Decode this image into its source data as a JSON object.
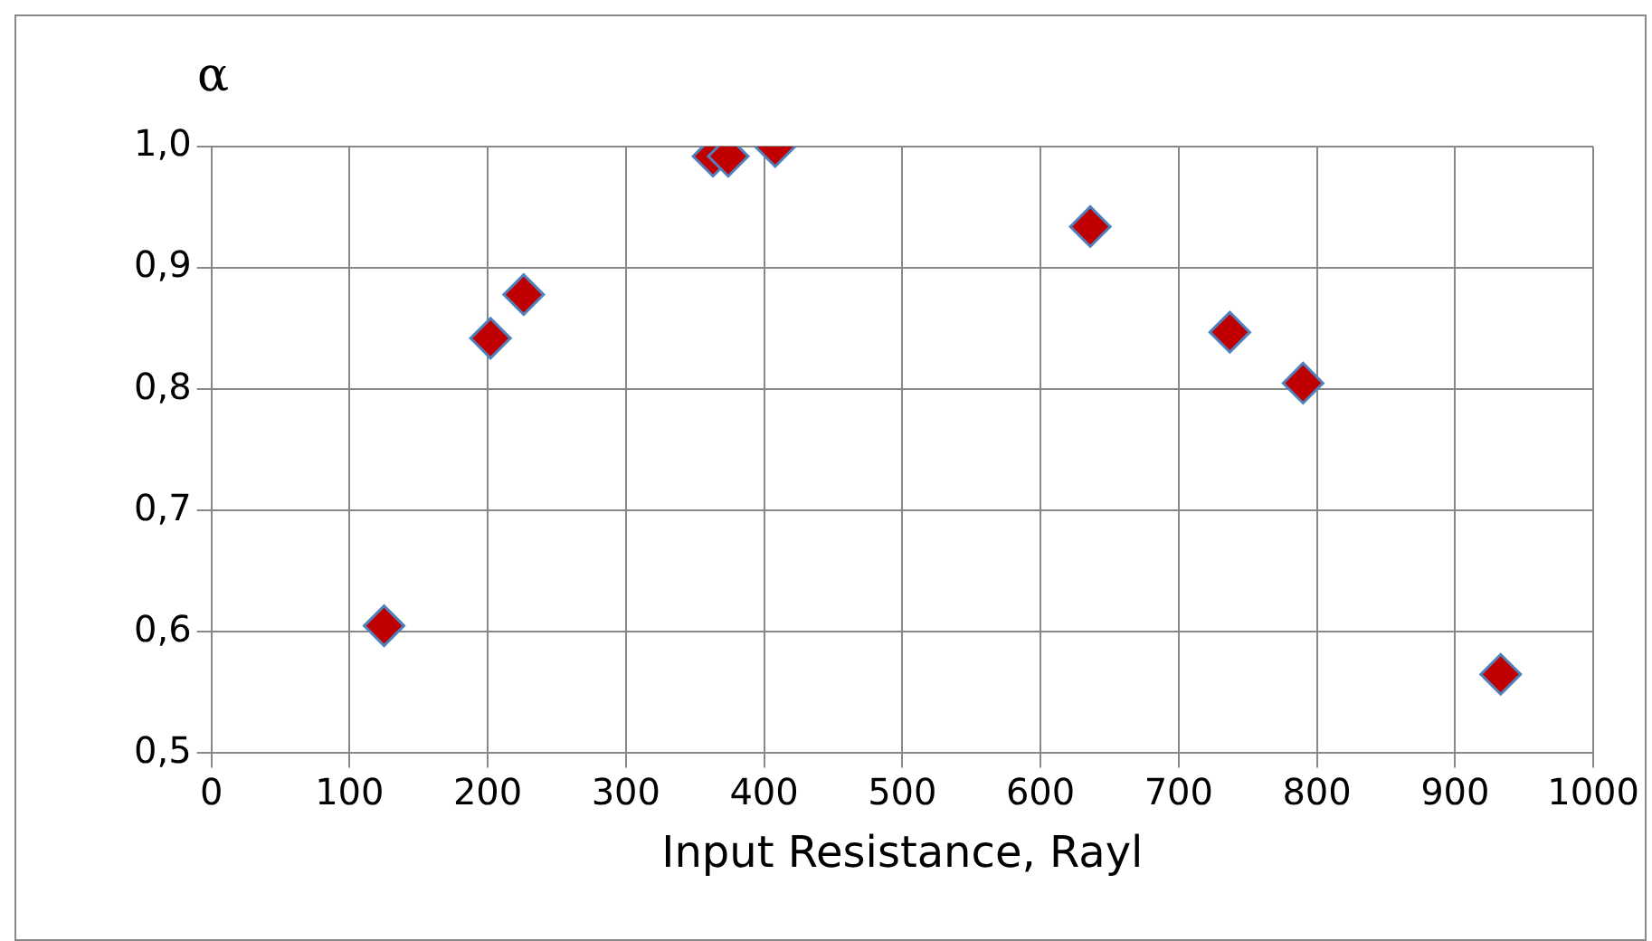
{
  "chart_data": {
    "type": "scatter",
    "ylabel": "α",
    "xlabel": "Input Resistance, Rayl",
    "x": [
      125,
      202,
      226,
      363,
      374,
      408,
      636,
      737,
      790,
      933
    ],
    "values": [
      0.605,
      0.842,
      0.878,
      0.992,
      0.992,
      1.0,
      0.934,
      0.847,
      0.805,
      0.565
    ],
    "color": "#c00000",
    "xlim": [
      0,
      1000
    ],
    "xticks": [
      0,
      100,
      200,
      300,
      400,
      500,
      600,
      700,
      800,
      900,
      1000
    ],
    "ylim": [
      0.5,
      1.0
    ],
    "yticks": [
      {
        "value": 0.5,
        "label": "0,5"
      },
      {
        "value": 0.6,
        "label": "0,6"
      },
      {
        "value": 0.7,
        "label": "0,7"
      },
      {
        "value": 0.8,
        "label": "0,8"
      },
      {
        "value": 0.9,
        "label": "0,9"
      },
      {
        "value": 1.0,
        "label": "1,0"
      }
    ],
    "grid": true,
    "legend": false,
    "marker": "diamond"
  }
}
